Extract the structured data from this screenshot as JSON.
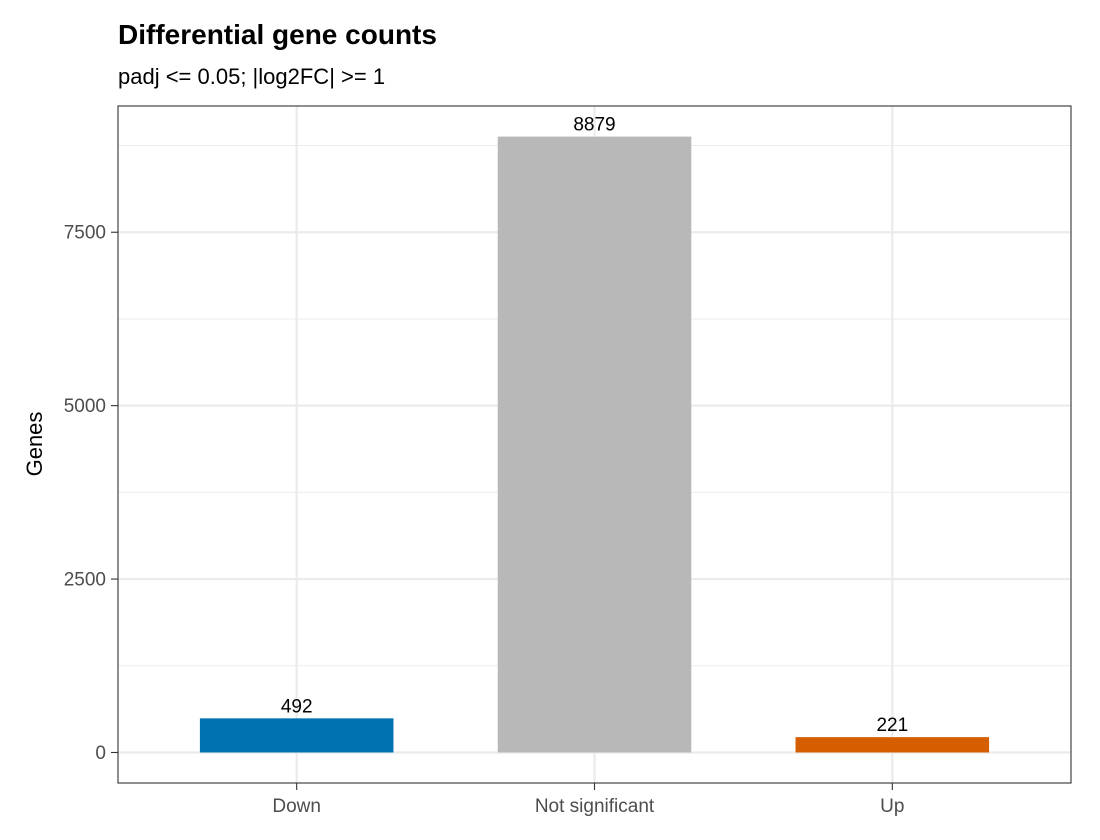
{
  "chart_data": {
    "type": "bar",
    "title": "Differential gene counts",
    "subtitle": "padj <= 0.05; |log2FC| >= 1",
    "xlabel": "",
    "ylabel": "Genes",
    "categories": [
      "Down",
      "Not significant",
      "Up"
    ],
    "values": [
      492,
      8879,
      221
    ],
    "value_labels": [
      "492",
      "8879",
      "221"
    ],
    "colors": [
      "#0072B2",
      "#B8B8B8",
      "#D55E00"
    ],
    "ylim": [
      -440,
      9320
    ],
    "yticks": [
      0,
      2500,
      5000,
      7500
    ],
    "ytick_labels": [
      "0",
      "2500",
      "5000",
      "7500"
    ],
    "grid": true,
    "legend": "none"
  }
}
